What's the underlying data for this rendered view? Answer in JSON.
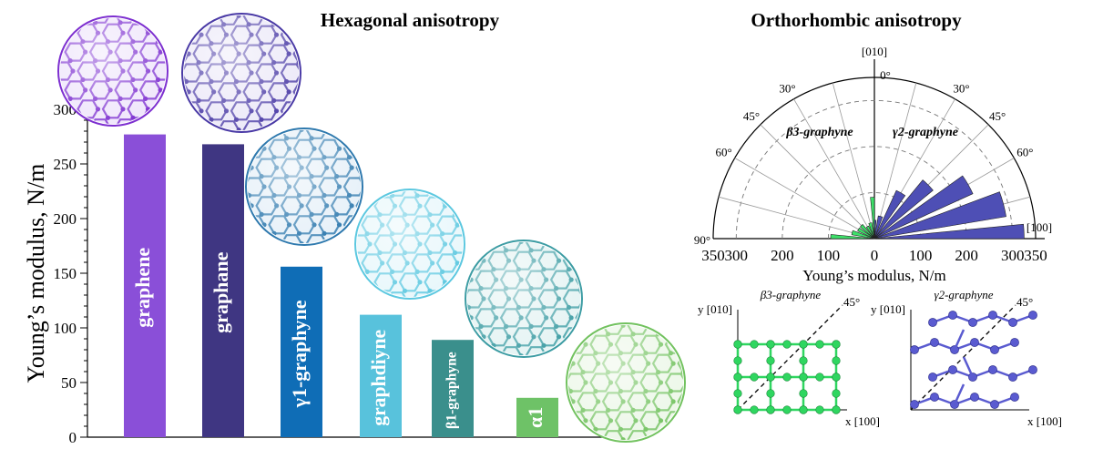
{
  "chart_data": [
    {
      "type": "bar",
      "title": "Hexagonal anisotropy",
      "ylabel": "Young’s  modulus, N/m",
      "ylim": [
        0,
        300
      ],
      "yticks": [
        "0",
        "50",
        "100",
        "150",
        "200",
        "250",
        "300"
      ],
      "categories": [
        "graphene",
        "graphane",
        "γ1-graphyne",
        "graphdiyne",
        "β1-graphyne",
        "α1"
      ],
      "values": [
        277,
        268,
        156,
        112,
        89,
        36
      ],
      "colors": [
        "#8a4fd8",
        "#3f3682",
        "#0f6db6",
        "#58c2dc",
        "#3a8f8c",
        "#6ec267"
      ]
    },
    {
      "type": "polar-bar",
      "title": "Orthorhombic anisotropy",
      "xlabel": "Young’s  modulus, N/m",
      "rlim": [
        0,
        350
      ],
      "rticks_left": [
        "350",
        "300",
        "200",
        "100",
        "0"
      ],
      "rticks_right": [
        "100",
        "200",
        "300",
        "350"
      ],
      "angle_labels_left": [
        "0°",
        "30°",
        "45°",
        "60°",
        "90°"
      ],
      "angle_labels_right": [
        "30°",
        "45°",
        "60°"
      ],
      "axis_label_top": "[010]",
      "axis_label_right": "[100]",
      "series": [
        {
          "name": "β3-graphyne",
          "color": "#3ee06a",
          "angles_deg": [
            0,
            15,
            30,
            45,
            60,
            75,
            90
          ],
          "values": [
            90,
            35,
            30,
            40,
            40,
            50,
            95
          ]
        },
        {
          "name": "γ2-graphyne",
          "color": "#4e4fb5",
          "angles_deg": [
            0,
            15,
            30,
            45,
            60,
            75,
            90
          ],
          "values": [
            40,
            50,
            115,
            165,
            235,
            290,
            325
          ]
        }
      ]
    }
  ],
  "lattice_insets": [
    {
      "name": "β3-graphyne",
      "x_label": "x [100]",
      "y_label": "y [010]",
      "angle_label": "45°",
      "color": "#2fd660"
    },
    {
      "name": "γ2-graphyne",
      "x_label": "x [100]",
      "y_label": "y [010]",
      "angle_label": "45°",
      "color": "#5a5bd0"
    }
  ]
}
